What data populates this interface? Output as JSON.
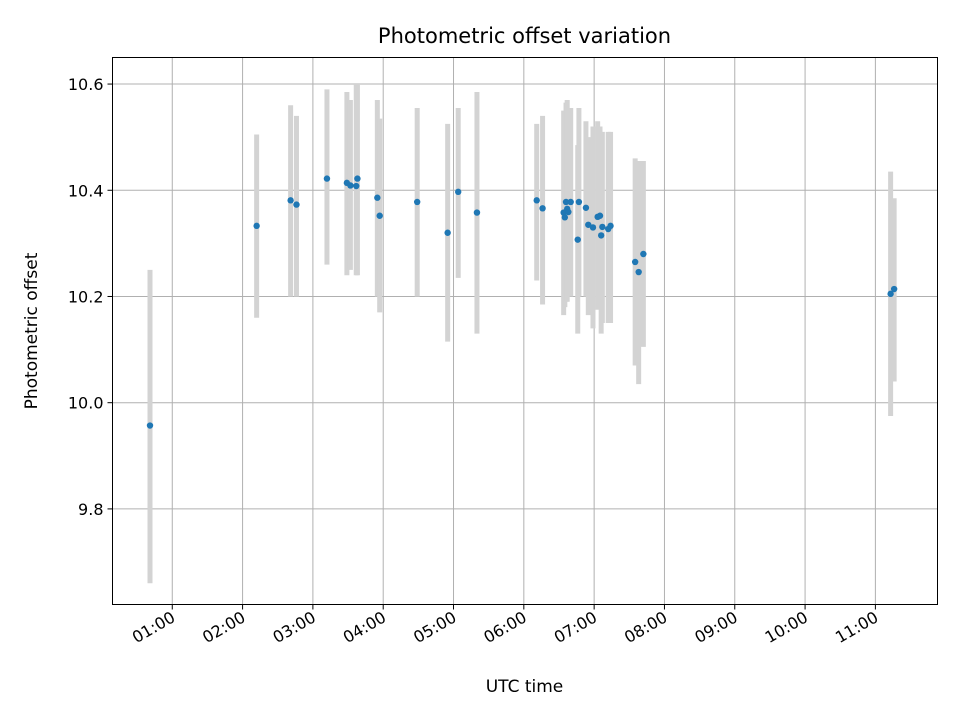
{
  "chart_data": {
    "type": "scatter",
    "title": "Photometric offset variation",
    "xlabel": "UTC time",
    "ylabel": "Photometric offset",
    "xlim": [
      "00:09",
      "11:53"
    ],
    "ylim": [
      9.62,
      10.65
    ],
    "xticks": [
      "01:00",
      "02:00",
      "03:00",
      "04:00",
      "05:00",
      "06:00",
      "07:00",
      "08:00",
      "09:00",
      "10:00",
      "11:00"
    ],
    "yticks": [
      9.8,
      10.0,
      10.2,
      10.4,
      10.6
    ],
    "grid": true,
    "point_color": "#1f77b4",
    "errorbar_color": "#d3d3d3",
    "points": [
      {
        "t": "00:41",
        "y": 9.957,
        "lo": 9.66,
        "hi": 10.25
      },
      {
        "t": "02:12",
        "y": 10.333,
        "lo": 10.16,
        "hi": 10.505
      },
      {
        "t": "02:41",
        "y": 10.381,
        "lo": 10.2,
        "hi": 10.56
      },
      {
        "t": "02:46",
        "y": 10.373,
        "lo": 10.2,
        "hi": 10.54
      },
      {
        "t": "03:12",
        "y": 10.422,
        "lo": 10.26,
        "hi": 10.59
      },
      {
        "t": "03:29",
        "y": 10.414,
        "lo": 10.24,
        "hi": 10.585
      },
      {
        "t": "03:32",
        "y": 10.409,
        "lo": 10.25,
        "hi": 10.57
      },
      {
        "t": "03:37",
        "y": 10.408,
        "lo": 10.24,
        "hi": 10.6
      },
      {
        "t": "03:38",
        "y": 10.422,
        "lo": 10.24,
        "hi": 10.6
      },
      {
        "t": "03:55",
        "y": 10.386,
        "lo": 10.2,
        "hi": 10.57
      },
      {
        "t": "03:57",
        "y": 10.352,
        "lo": 10.17,
        "hi": 10.535
      },
      {
        "t": "04:29",
        "y": 10.378,
        "lo": 10.2,
        "hi": 10.555
      },
      {
        "t": "04:55",
        "y": 10.32,
        "lo": 10.115,
        "hi": 10.525
      },
      {
        "t": "05:04",
        "y": 10.397,
        "lo": 10.235,
        "hi": 10.555
      },
      {
        "t": "05:20",
        "y": 10.358,
        "lo": 10.13,
        "hi": 10.585
      },
      {
        "t": "06:11",
        "y": 10.381,
        "lo": 10.23,
        "hi": 10.525
      },
      {
        "t": "06:16",
        "y": 10.366,
        "lo": 10.185,
        "hi": 10.54
      },
      {
        "t": "06:34",
        "y": 10.358,
        "lo": 10.165,
        "hi": 10.55
      },
      {
        "t": "06:35",
        "y": 10.349,
        "lo": 10.18,
        "hi": 10.53
      },
      {
        "t": "06:36",
        "y": 10.378,
        "lo": 10.19,
        "hi": 10.565
      },
      {
        "t": "06:37",
        "y": 10.365,
        "lo": 10.19,
        "hi": 10.57
      },
      {
        "t": "06:38",
        "y": 10.359,
        "lo": 10.2,
        "hi": 10.525
      },
      {
        "t": "06:40",
        "y": 10.378,
        "lo": 10.2,
        "hi": 10.555
      },
      {
        "t": "06:46",
        "y": 10.307,
        "lo": 10.13,
        "hi": 10.485
      },
      {
        "t": "06:47",
        "y": 10.378,
        "lo": 10.2,
        "hi": 10.555
      },
      {
        "t": "06:53",
        "y": 10.367,
        "lo": 10.2,
        "hi": 10.53
      },
      {
        "t": "06:55",
        "y": 10.335,
        "lo": 10.165,
        "hi": 10.5
      },
      {
        "t": "06:59",
        "y": 10.33,
        "lo": 10.14,
        "hi": 10.52
      },
      {
        "t": "07:03",
        "y": 10.35,
        "lo": 10.175,
        "hi": 10.53
      },
      {
        "t": "07:05",
        "y": 10.352,
        "lo": 10.18,
        "hi": 10.52
      },
      {
        "t": "07:06",
        "y": 10.315,
        "lo": 10.13,
        "hi": 10.5
      },
      {
        "t": "07:07",
        "y": 10.331,
        "lo": 10.15,
        "hi": 10.51
      },
      {
        "t": "07:12",
        "y": 10.327,
        "lo": 10.15,
        "hi": 10.51
      },
      {
        "t": "07:14",
        "y": 10.333,
        "lo": 10.15,
        "hi": 10.51
      },
      {
        "t": "07:35",
        "y": 10.265,
        "lo": 10.07,
        "hi": 10.46
      },
      {
        "t": "07:38",
        "y": 10.246,
        "lo": 10.035,
        "hi": 10.455
      },
      {
        "t": "07:42",
        "y": 10.28,
        "lo": 10.105,
        "hi": 10.455
      },
      {
        "t": "11:13",
        "y": 10.205,
        "lo": 9.975,
        "hi": 10.435
      },
      {
        "t": "11:16",
        "y": 10.214,
        "lo": 10.04,
        "hi": 10.385
      }
    ]
  }
}
